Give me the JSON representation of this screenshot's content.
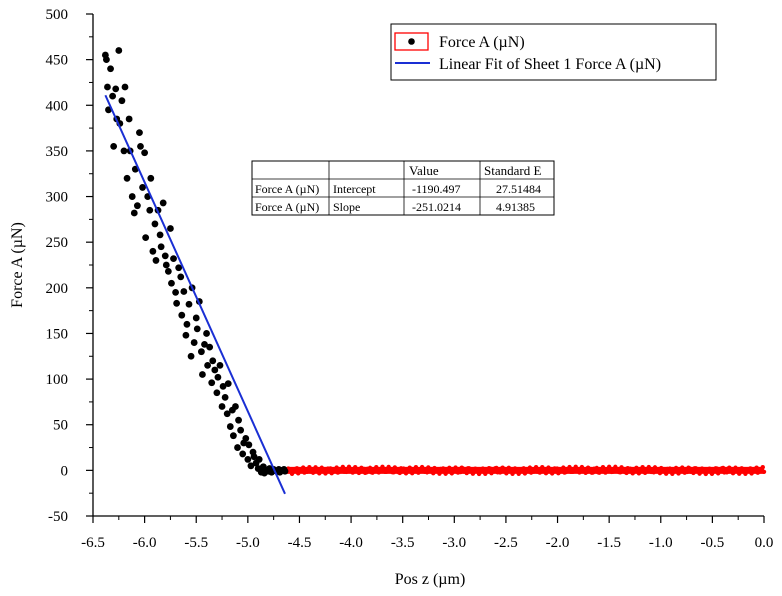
{
  "chart_data": {
    "type": "scatter",
    "title": "",
    "xlabel": "Pos z (µm)",
    "ylabel": "Force A (µN)",
    "xlim": [
      -6.5,
      0.0
    ],
    "ylim": [
      -50,
      500
    ],
    "x_ticks": [
      -6.5,
      -6.0,
      -5.5,
      -5.0,
      -4.5,
      -4.0,
      -3.5,
      -3.0,
      -2.5,
      -2.0,
      -1.5,
      -1.0,
      -0.5,
      0.0
    ],
    "x_tick_labels": [
      "-6.5",
      "-6.0",
      "-5.5",
      "-5.0",
      "-4.5",
      "-4.0",
      "-3.5",
      "-3.0",
      "-2.5",
      "-2.0",
      "-1.5",
      "-1.0",
      "-0.5",
      "0.0"
    ],
    "y_ticks": [
      -50,
      0,
      50,
      100,
      150,
      200,
      250,
      300,
      350,
      400,
      450,
      500
    ],
    "y_tick_labels": [
      "-50",
      "0",
      "50",
      "100",
      "150",
      "200",
      "250",
      "300",
      "350",
      "400",
      "450",
      "500"
    ],
    "grid": false,
    "legend_position": "top-right",
    "series": [
      {
        "name": "Force A (µN)",
        "kind": "scatter",
        "marker_color": "#000000",
        "contact_region": {
          "x": [
            -6.38,
            -6.37,
            -6.36,
            -6.35,
            -6.33,
            -6.31,
            -6.3,
            -6.28,
            -6.27,
            -6.25,
            -6.24,
            -6.22,
            -6.2,
            -6.19,
            -6.17,
            -6.15,
            -6.14,
            -6.12,
            -6.1,
            -6.09,
            -6.07,
            -6.05,
            -6.04,
            -6.02,
            -6.0,
            -5.99,
            -5.97,
            -5.95,
            -5.94,
            -5.92,
            -5.9,
            -5.89,
            -5.87,
            -5.85,
            -5.84,
            -5.82,
            -5.8,
            -5.79,
            -5.77,
            -5.75,
            -5.74,
            -5.72,
            -5.7,
            -5.69,
            -5.67,
            -5.65,
            -5.64,
            -5.62,
            -5.6,
            -5.59,
            -5.57,
            -5.55,
            -5.54,
            -5.52,
            -5.5,
            -5.49,
            -5.47,
            -5.45,
            -5.44,
            -5.42,
            -5.4,
            -5.39,
            -5.37,
            -5.35,
            -5.34,
            -5.32,
            -5.3,
            -5.29,
            -5.27,
            -5.25,
            -5.24,
            -5.22,
            -5.2,
            -5.19,
            -5.17,
            -5.15,
            -5.14,
            -5.12,
            -5.1,
            -5.09,
            -5.07,
            -5.05,
            -5.04,
            -5.02,
            -5.0,
            -4.99,
            -4.97,
            -4.95,
            -4.94,
            -4.92,
            -4.9,
            -4.89,
            -4.87,
            -4.85,
            -4.84,
            -4.82,
            -4.8,
            -4.79,
            -4.77,
            -4.75,
            -4.74,
            -4.72,
            -4.7,
            -4.69,
            -4.67,
            -4.65,
            -4.64
          ],
          "y": [
            455,
            450,
            420,
            395,
            440,
            410,
            355,
            418,
            385,
            460,
            380,
            405,
            350,
            420,
            320,
            385,
            350,
            300,
            282,
            330,
            290,
            370,
            355,
            310,
            348,
            255,
            300,
            285,
            320,
            240,
            270,
            230,
            285,
            258,
            245,
            293,
            235,
            225,
            218,
            265,
            205,
            232,
            195,
            183,
            222,
            212,
            170,
            196,
            148,
            160,
            182,
            125,
            200,
            140,
            167,
            155,
            185,
            130,
            105,
            138,
            150,
            115,
            135,
            96,
            120,
            110,
            85,
            102,
            115,
            70,
            92,
            80,
            62,
            95,
            48,
            66,
            38,
            70,
            25,
            55,
            44,
            18,
            30,
            35,
            12,
            28,
            5,
            20,
            15,
            8,
            2,
            12,
            -2,
            4,
            -3,
            0,
            -1,
            2,
            -2,
            1,
            0,
            -1,
            1,
            -2,
            0,
            1,
            -1
          ]
        },
        "noncontact_region": {
          "x_range": [
            -4.62,
            0.0
          ],
          "y_value_approx": 0,
          "marker_color": "#ff0000"
        }
      },
      {
        "name": "Linear Fit of Sheet 1 Force A (µN)",
        "kind": "line",
        "line_color": "#1a2fd4",
        "x": [
          -6.38,
          -4.64
        ],
        "y": [
          411.0,
          -25.7
        ]
      }
    ],
    "legend": {
      "entries": [
        {
          "label": "Force A (µN)",
          "symbol": "scatter-dot"
        },
        {
          "label": "Linear Fit of Sheet 1 Force A (µN)",
          "symbol": "line"
        }
      ]
    },
    "fit_table": {
      "header": [
        "",
        "",
        "Value",
        "Standard E"
      ],
      "rows": [
        [
          "Force A (µN)",
          "Intercept",
          "-1190.497",
          "27.51484"
        ],
        [
          "Force A (µN)",
          "Slope",
          "-251.0214",
          "4.91385"
        ]
      ]
    }
  }
}
